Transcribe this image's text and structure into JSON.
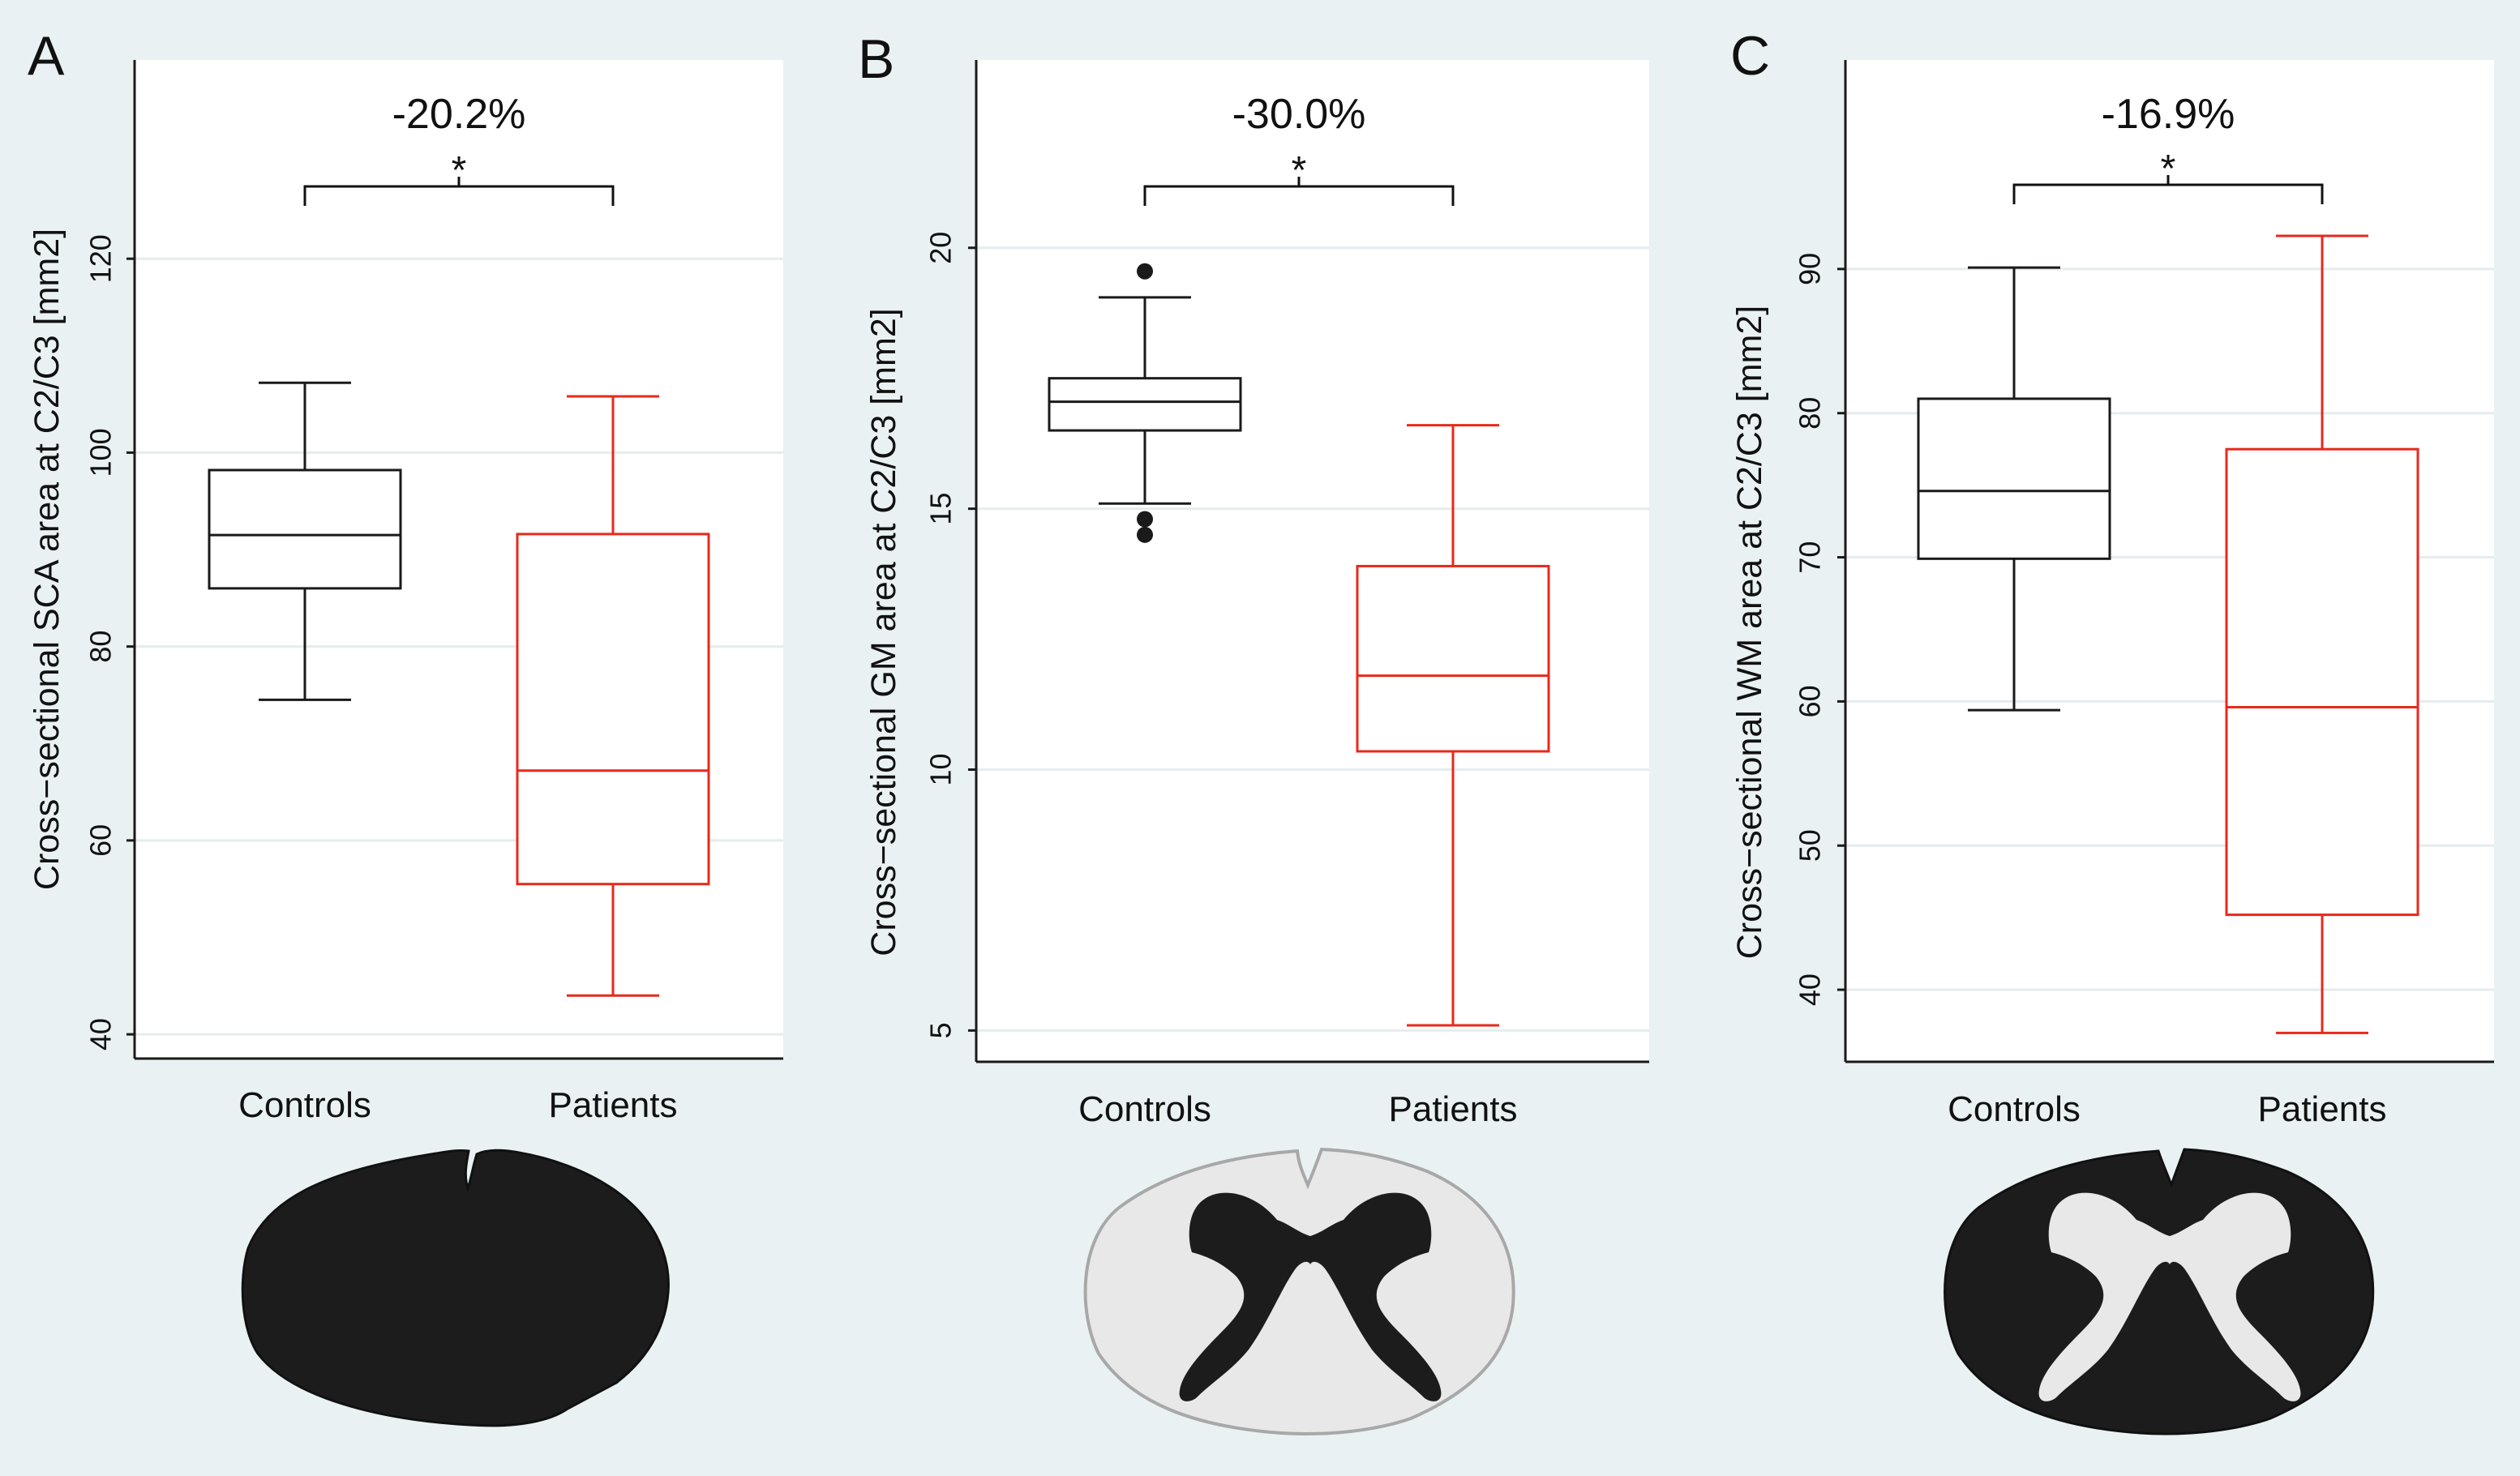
{
  "figure": {
    "description_labels": [
      "A",
      "B",
      "C"
    ]
  },
  "colors": {
    "controls": "#1a1a1a",
    "patients": "#e8291c",
    "background": "#e9f1f3",
    "plot_background": "#ffffff",
    "grid": "#e6ecee",
    "gm_fill": "#1c1c1c",
    "wm_fill": "#e8e8e8"
  },
  "chart_data": [
    {
      "panel_label": "A",
      "type": "box",
      "ylabel": "Cross−sectional SCA area at C2/C3 [mm2]",
      "categories": [
        "Controls",
        "Patients"
      ],
      "ylim": [
        37.5,
        140.5
      ],
      "yticks": [
        40,
        60,
        80,
        100,
        120
      ],
      "boxes": [
        {
          "name": "Controls",
          "whisker_low": 74.5,
          "q1": 86.0,
          "median": 91.5,
          "q3": 98.2,
          "whisker_high": 107.2,
          "outliers": []
        },
        {
          "name": "Patients",
          "whisker_low": 44.0,
          "q1": 55.5,
          "median": 67.2,
          "q3": 91.6,
          "whisker_high": 105.8,
          "outliers": []
        }
      ],
      "comparison": {
        "percent_label": "-20.2%",
        "significance": "*"
      },
      "illustration": "spinal-cord-total-area"
    },
    {
      "panel_label": "B",
      "type": "box",
      "ylabel": "Cross−sectional GM area at C2/C3 [mm2]",
      "categories": [
        "Controls",
        "Patients"
      ],
      "ylim": [
        4.4,
        23.6
      ],
      "yticks": [
        5,
        10,
        15,
        20
      ],
      "boxes": [
        {
          "name": "Controls",
          "whisker_low": 15.1,
          "q1": 16.5,
          "median": 17.05,
          "q3": 17.5,
          "whisker_high": 19.05,
          "outliers": [
            19.55,
            14.8,
            14.5
          ]
        },
        {
          "name": "Patients",
          "whisker_low": 5.1,
          "q1": 10.35,
          "median": 11.8,
          "q3": 13.9,
          "whisker_high": 16.6,
          "outliers": []
        }
      ],
      "comparison": {
        "percent_label": "-30.0%",
        "significance": "*"
      },
      "illustration": "spinal-cord-grey-matter"
    },
    {
      "panel_label": "C",
      "type": "box",
      "ylabel": "Cross−sectional WM area at C2/C3 [mm2]",
      "categories": [
        "Controls",
        "Patients"
      ],
      "ylim": [
        35.0,
        104.5
      ],
      "yticks": [
        40,
        50,
        60,
        70,
        80,
        90
      ],
      "boxes": [
        {
          "name": "Controls",
          "whisker_low": 59.4,
          "q1": 69.9,
          "median": 74.6,
          "q3": 81.0,
          "whisker_high": 90.1,
          "outliers": []
        },
        {
          "name": "Patients",
          "whisker_low": 37.0,
          "q1": 45.2,
          "median": 59.6,
          "q3": 77.5,
          "whisker_high": 92.3,
          "outliers": []
        }
      ],
      "comparison": {
        "percent_label": "-16.9%",
        "significance": "*"
      },
      "illustration": "spinal-cord-white-matter"
    }
  ]
}
